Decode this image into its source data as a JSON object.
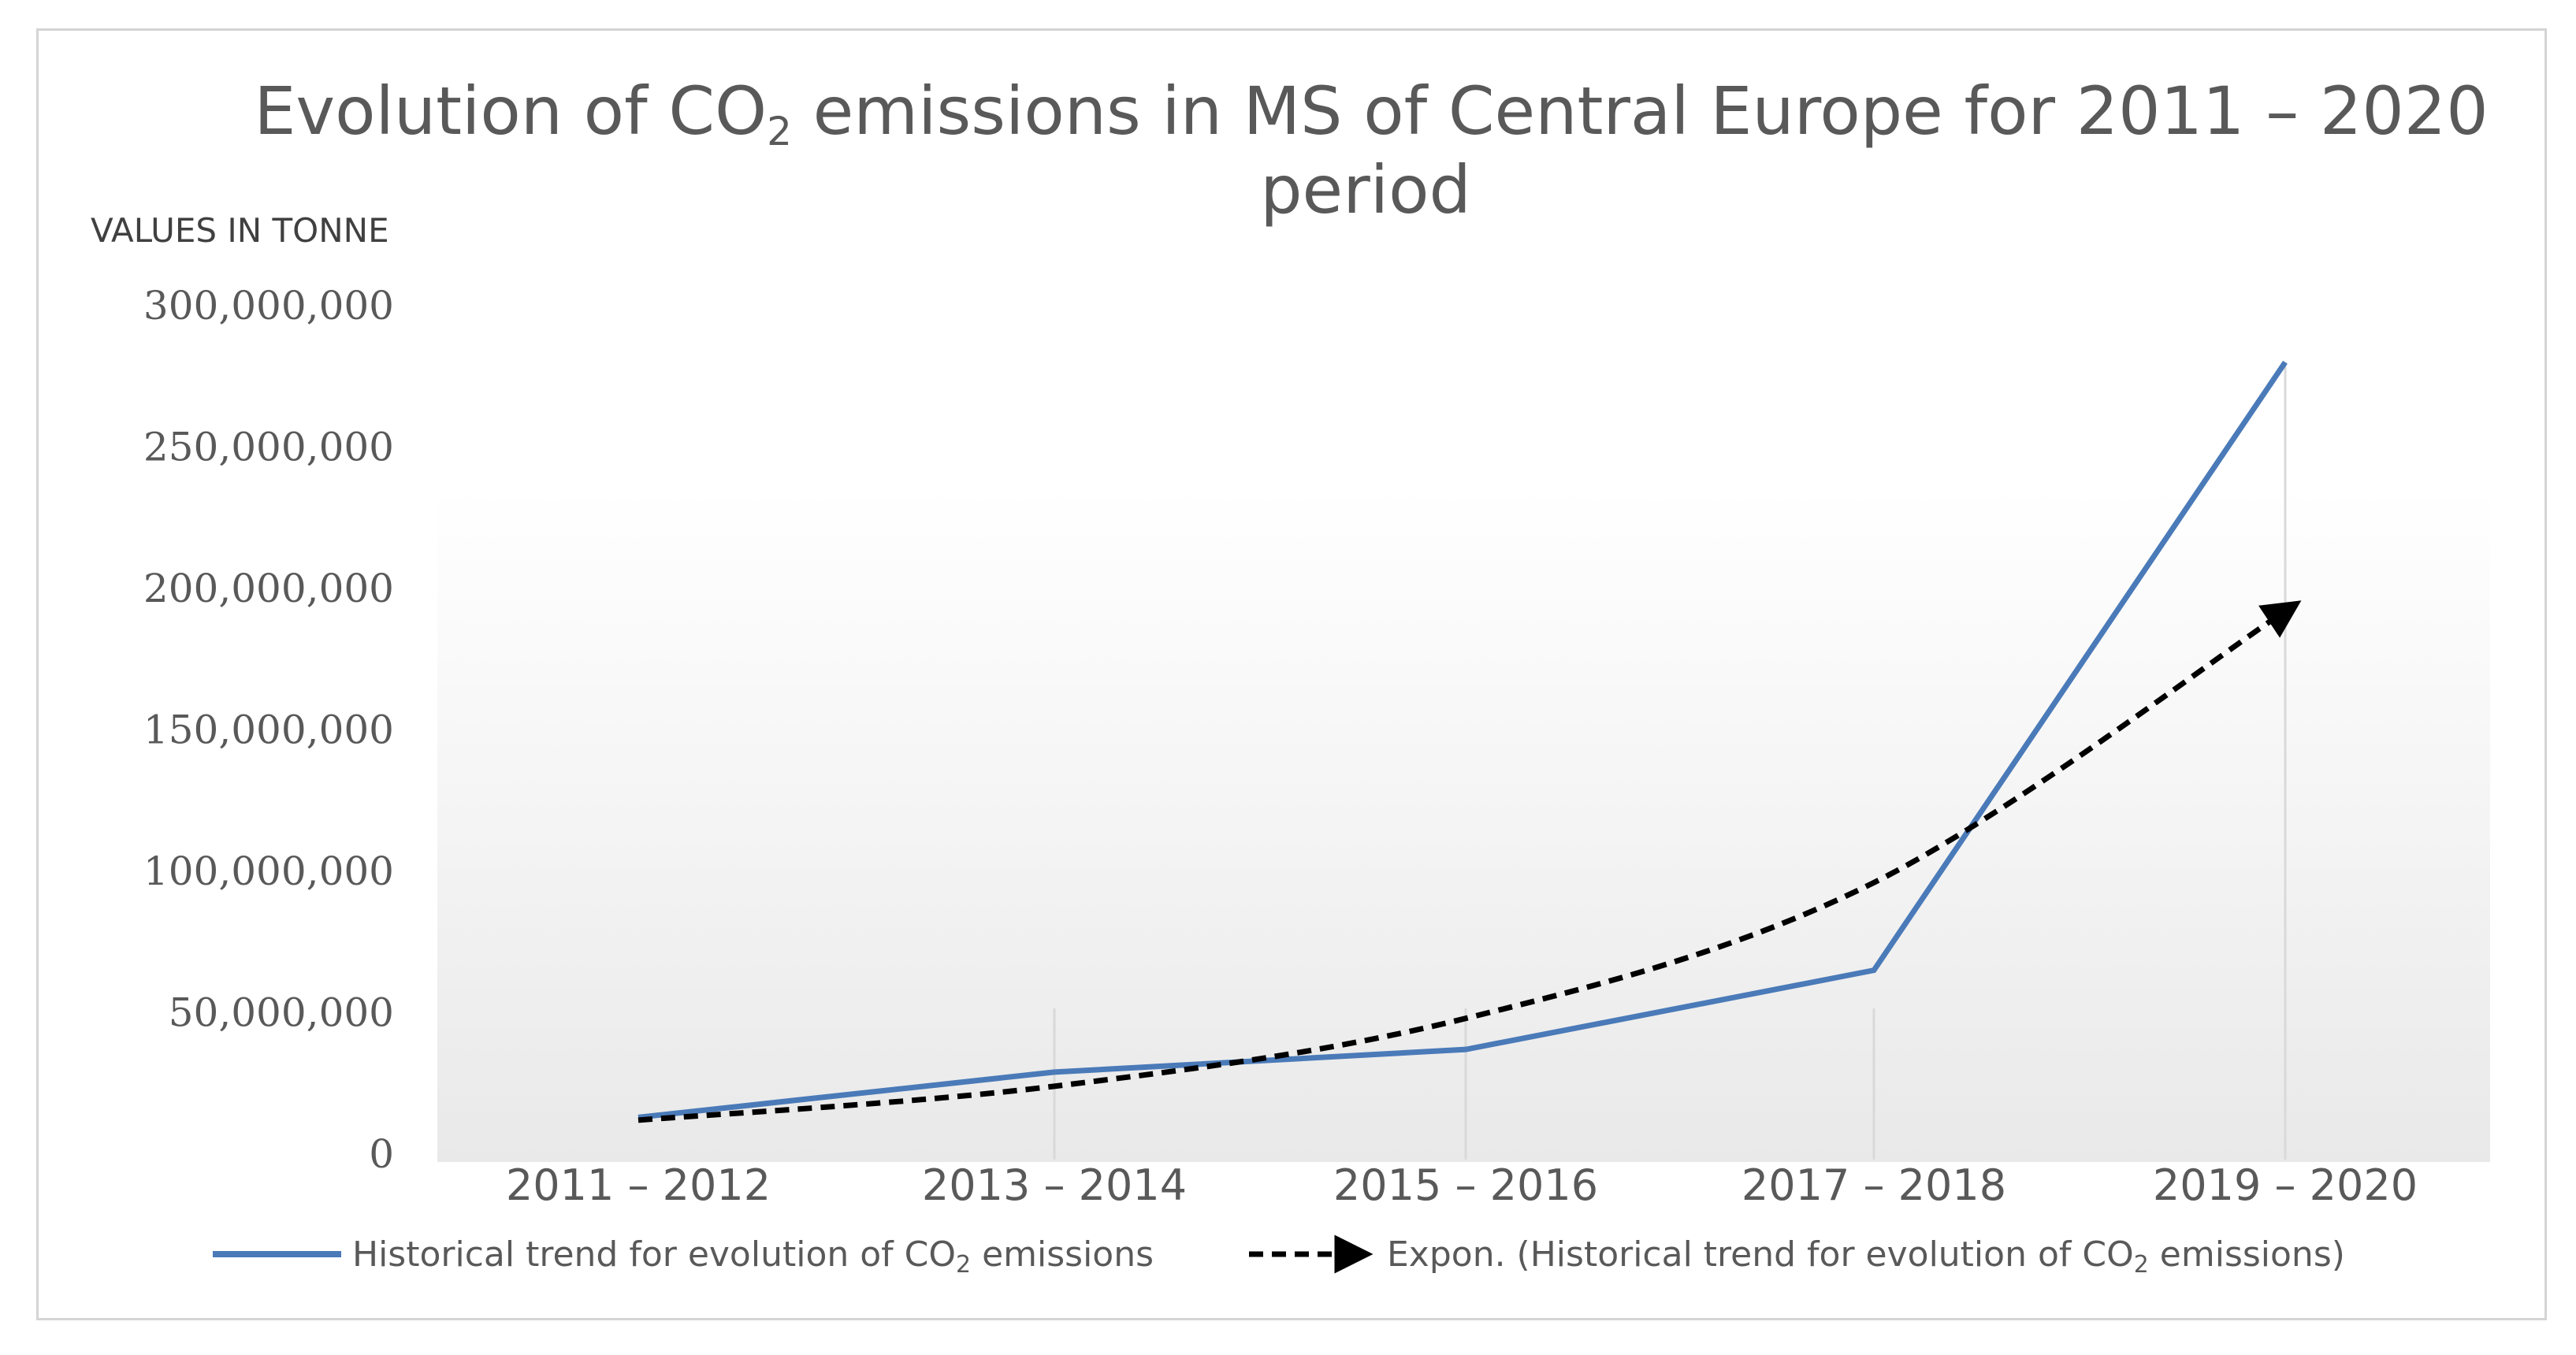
{
  "chart_data": {
    "type": "line",
    "title_part1": "Evolution of CO",
    "title_sub": "2",
    "title_part2": " emissions in MS of Central Europe for 2011 – 2020",
    "title_line2": "period",
    "ylabel": "VALUES IN TONNE",
    "xlabel": "",
    "categories": [
      "2011 – 2012",
      "2013 – 2014",
      "2015 – 2016",
      "2017 – 2018",
      "2019 – 2020"
    ],
    "yticks": [
      "0",
      "50,000,000",
      "100,000,000",
      "150,000,000",
      "200,000,000",
      "250,000,000",
      "300,000,000"
    ],
    "ylim": [
      0,
      300000000
    ],
    "series": [
      {
        "name": "Historical trend for evolution of CO2 emissions",
        "legend_main": "Historical trend for evolution of ",
        "legend_co": "CO",
        "legend_sub": "2",
        "legend_tail": " emissions",
        "color": "#4a7ab8",
        "style": "solid",
        "values": [
          13000000,
          29000000,
          37000000,
          65000000,
          280000000
        ]
      },
      {
        "name": "Expon. (Historical trend for evolution of CO2 emissions)",
        "legend_main": "Expon. (Historical trend for evolution of ",
        "legend_co": "CO",
        "legend_sub": "2",
        "legend_tail": " emissions)",
        "color": "#000000",
        "style": "dashed",
        "values": [
          12000000,
          24000000,
          48000000,
          96000000,
          192000000
        ]
      }
    ]
  }
}
